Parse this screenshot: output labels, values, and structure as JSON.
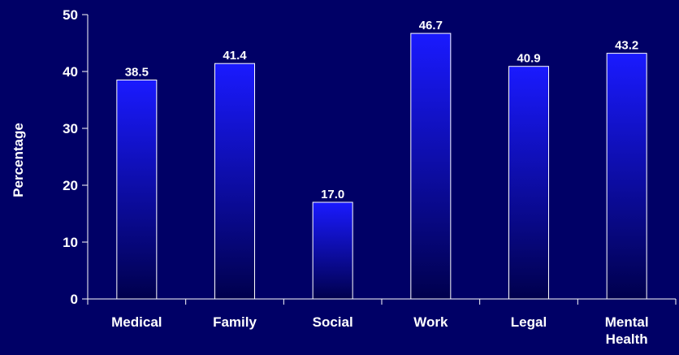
{
  "chart_data": {
    "type": "bar",
    "categories": [
      "Medical",
      "Family",
      "Social",
      "Work",
      "Legal",
      "Mental Health"
    ],
    "values": [
      38.5,
      41.4,
      17.0,
      46.7,
      40.9,
      43.2
    ],
    "value_labels": [
      "38.5",
      "41.4",
      "17.0",
      "46.7",
      "40.9",
      "43.2"
    ],
    "xlabel": "",
    "ylabel": "Percentage",
    "ylim": [
      0,
      50
    ],
    "yticks": [
      0,
      10,
      20,
      30,
      40,
      50
    ],
    "grid": false,
    "legend": "none"
  },
  "colors": {
    "background": "#000066",
    "bar_top": "#1a1aff",
    "bar_bottom": "#00004d",
    "bar_border": "#ffffff",
    "axis": "#ffffff",
    "text": "#ffffff"
  }
}
